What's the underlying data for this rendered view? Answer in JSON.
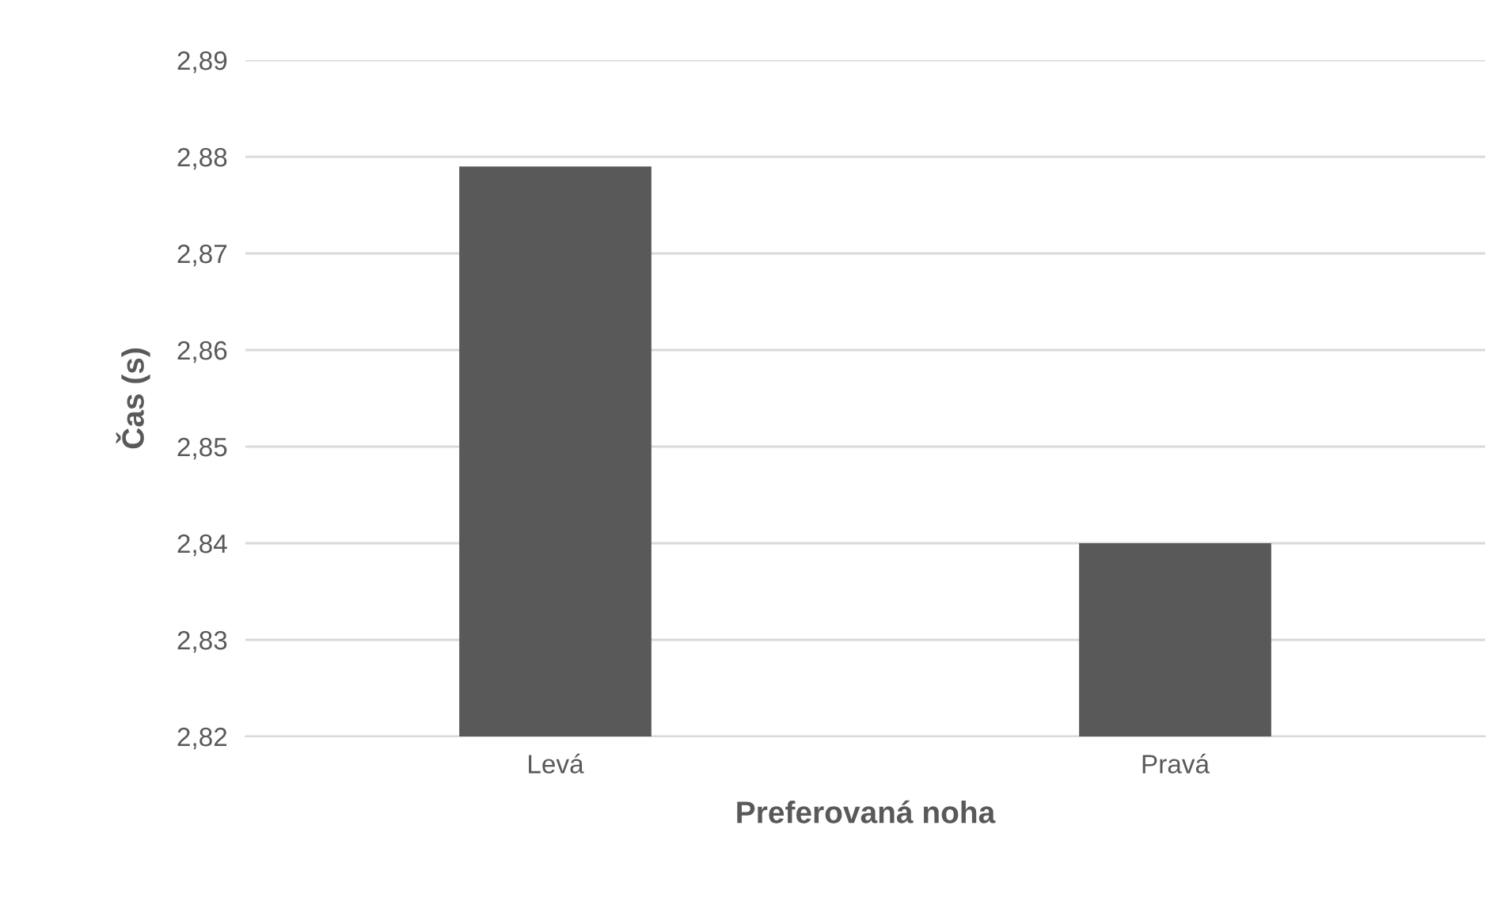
{
  "chart_data": {
    "type": "bar",
    "xlabel": "Preferovaná noha",
    "ylabel": "Čas (s)",
    "categories": [
      "Levá",
      "Pravá"
    ],
    "values": [
      2.879,
      2.84
    ],
    "color": "#595959",
    "ylim": [
      2.82,
      2.89
    ],
    "yticks": [
      {
        "value": 2.82,
        "label": "2,82"
      },
      {
        "value": 2.83,
        "label": "2,83"
      },
      {
        "value": 2.84,
        "label": "2,84"
      },
      {
        "value": 2.85,
        "label": "2,85"
      },
      {
        "value": 2.86,
        "label": "2,86"
      },
      {
        "value": 2.87,
        "label": "2,87"
      },
      {
        "value": 2.88,
        "label": "2,88"
      },
      {
        "value": 2.89,
        "label": "2,89"
      }
    ],
    "grid": "y"
  }
}
